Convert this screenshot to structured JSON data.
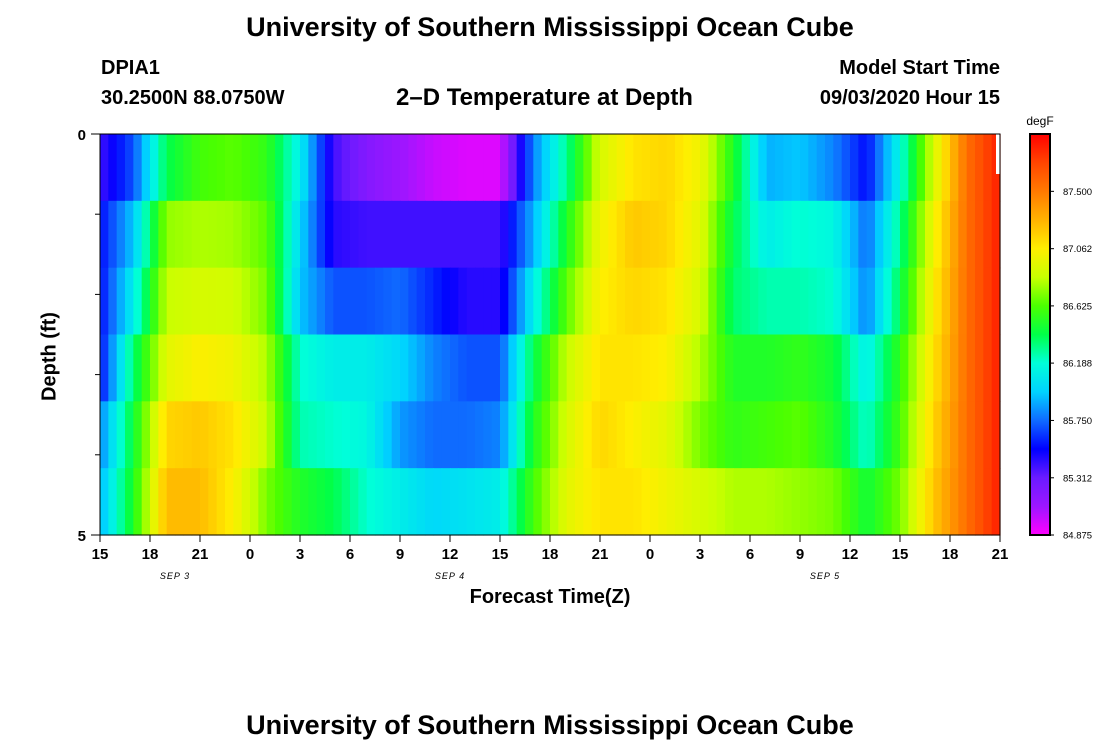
{
  "header": {
    "title_top": "University of Southern Mississippi Ocean Cube",
    "station_id": "DPIA1",
    "station_coords": "30.2500N 88.0750W",
    "plot_title": "2–D Temperature at Depth",
    "model_start_label": "Model Start Time",
    "model_start_value": "09/03/2020 Hour 15",
    "title_bottom": "University of Southern Mississippi Ocean Cube"
  },
  "chart_data": {
    "type": "heatmap",
    "title": "2–D Temperature at Depth",
    "xlabel": "Forecast Time(Z)",
    "ylabel": "Depth (ft)",
    "x_tick_labels": [
      "15",
      "18",
      "21",
      "0",
      "3",
      "6",
      "9",
      "12",
      "15",
      "18",
      "21",
      "0",
      "3",
      "6",
      "9",
      "12",
      "15",
      "18",
      "21"
    ],
    "x_hours_since_start": [
      0,
      3,
      6,
      9,
      12,
      15,
      18,
      21,
      24,
      27,
      30,
      33,
      36,
      39,
      42,
      45,
      48,
      51,
      54
    ],
    "date_labels": [
      {
        "text": "SEP 3",
        "hour": 4.5
      },
      {
        "text": "SEP 4",
        "hour": 21
      },
      {
        "text": "SEP 5",
        "hour": 43.5
      }
    ],
    "y_tick_labels": [
      "0",
      "5"
    ],
    "ylim": [
      0,
      5
    ],
    "xlim_hours": [
      0,
      54
    ],
    "depth_levels": [
      0,
      1,
      2,
      3,
      4,
      5
    ],
    "colorbar": {
      "unit": "degF",
      "ticks": [
        "87.500",
        "87.062",
        "86.625",
        "86.188",
        "85.750",
        "85.312",
        "84.875"
      ],
      "range": [
        84.875,
        87.938
      ],
      "colors": [
        "#ff00ff",
        "#9d16ff",
        "#6a1bff",
        "#0000ff",
        "#0f6bff",
        "#00d2ff",
        "#00ffd9",
        "#00ff48",
        "#4bff00",
        "#c8ff00",
        "#ffee00",
        "#ffb200",
        "#ff7a00",
        "#ff4500",
        "#ff0000"
      ]
    },
    "time_hours": [
      0,
      2,
      4,
      6,
      8,
      10,
      12,
      14,
      16,
      18,
      20,
      22,
      24,
      26,
      28,
      30,
      32,
      34,
      36,
      38,
      40,
      42,
      44,
      46,
      48,
      50,
      52,
      54
    ],
    "temperature_degF": [
      [
        85.4,
        85.7,
        86.4,
        86.6,
        86.65,
        86.55,
        86.1,
        85.4,
        85.2,
        85.1,
        85.0,
        84.95,
        84.95,
        85.8,
        86.3,
        86.9,
        87.1,
        87.15,
        87.0,
        86.5,
        85.9,
        85.95,
        85.8,
        85.55,
        86.15,
        86.9,
        87.55,
        87.85
      ],
      [
        85.55,
        85.95,
        86.75,
        86.8,
        86.78,
        86.65,
        86.0,
        85.45,
        85.4,
        85.4,
        85.4,
        85.4,
        85.4,
        85.9,
        86.5,
        87.0,
        87.2,
        87.15,
        86.95,
        86.4,
        86.1,
        86.2,
        86.15,
        85.75,
        86.3,
        87.0,
        87.55,
        87.85
      ],
      [
        85.55,
        86.1,
        86.85,
        86.9,
        86.88,
        86.7,
        85.95,
        85.7,
        85.7,
        85.75,
        85.6,
        85.45,
        85.45,
        86.1,
        86.65,
        87.05,
        87.15,
        87.1,
        86.9,
        86.35,
        86.25,
        86.25,
        86.2,
        85.8,
        86.4,
        87.05,
        87.55,
        87.85
      ],
      [
        85.55,
        86.35,
        86.95,
        87.05,
        87.0,
        86.8,
        86.2,
        86.1,
        86.1,
        86.0,
        85.8,
        85.7,
        85.7,
        86.4,
        86.85,
        87.1,
        87.1,
        87.05,
        86.8,
        86.5,
        86.5,
        86.55,
        86.45,
        86.1,
        86.55,
        87.1,
        87.55,
        87.85
      ],
      [
        85.8,
        86.45,
        87.15,
        87.2,
        87.1,
        86.85,
        86.25,
        86.2,
        86.15,
        85.85,
        85.75,
        85.75,
        85.8,
        86.5,
        86.9,
        87.15,
        87.05,
        86.95,
        86.7,
        86.55,
        86.6,
        86.65,
        86.5,
        86.2,
        86.6,
        87.15,
        87.55,
        87.85
      ],
      [
        85.9,
        86.5,
        87.25,
        87.25,
        87.05,
        86.7,
        86.5,
        86.4,
        86.2,
        86.1,
        86.0,
        86.05,
        86.1,
        86.6,
        86.95,
        87.1,
        87.1,
        87.0,
        86.9,
        86.8,
        86.8,
        86.75,
        86.7,
        86.45,
        86.7,
        87.2,
        87.55,
        87.85
      ]
    ]
  }
}
